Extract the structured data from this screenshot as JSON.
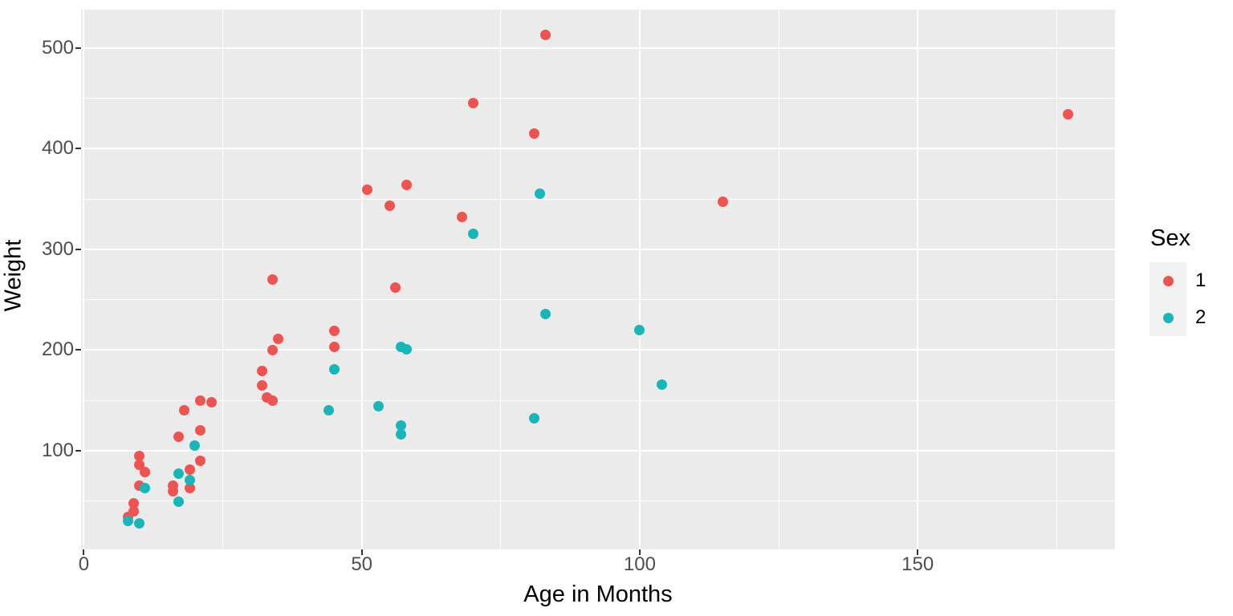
{
  "chart_data": {
    "type": "scatter",
    "title": "",
    "xlabel": "Age in Months",
    "ylabel": "Weight",
    "xlim": [
      -0.5,
      185.5
    ],
    "ylim": [
      2,
      538
    ],
    "x_major_ticks": [
      0,
      50,
      100,
      150
    ],
    "x_minor_ticks": [
      25,
      75,
      125,
      175
    ],
    "y_major_ticks": [
      100,
      200,
      300,
      400,
      500
    ],
    "y_minor_ticks": [
      50,
      150,
      250,
      350,
      450
    ],
    "grid": "on",
    "panel_bg": "#ebebeb",
    "grid_color": "#ffffff",
    "axis_text_color": "#4d4d4d",
    "legend": {
      "title": "Sex",
      "position": "right",
      "key_bg": "#f2f2f2",
      "entries": [
        {
          "label": "1",
          "color": "#f0524f"
        },
        {
          "label": "2",
          "color": "#16b6ba"
        }
      ]
    },
    "series": [
      {
        "name": "1",
        "color": "#f0524f",
        "points": [
          [
            8,
            34
          ],
          [
            9,
            40
          ],
          [
            9,
            48
          ],
          [
            10,
            65
          ],
          [
            10,
            86
          ],
          [
            10,
            95
          ],
          [
            11,
            79
          ],
          [
            16,
            60
          ],
          [
            16,
            65
          ],
          [
            17,
            114
          ],
          [
            18,
            140
          ],
          [
            19,
            63
          ],
          [
            19,
            81
          ],
          [
            21,
            90
          ],
          [
            21,
            120
          ],
          [
            21,
            150
          ],
          [
            23,
            148
          ],
          [
            32,
            165
          ],
          [
            32,
            179
          ],
          [
            33,
            153
          ],
          [
            34,
            150
          ],
          [
            34,
            200
          ],
          [
            34,
            270
          ],
          [
            35,
            211
          ],
          [
            45,
            203
          ],
          [
            45,
            219
          ],
          [
            51,
            359
          ],
          [
            55,
            343
          ],
          [
            56,
            262
          ],
          [
            58,
            364
          ],
          [
            68,
            332
          ],
          [
            70,
            445
          ],
          [
            81,
            415
          ],
          [
            83,
            513
          ],
          [
            115,
            347
          ],
          [
            177,
            434
          ]
        ]
      },
      {
        "name": "2",
        "color": "#16b6ba",
        "points": [
          [
            8,
            30
          ],
          [
            10,
            28
          ],
          [
            11,
            63
          ],
          [
            17,
            49
          ],
          [
            17,
            77
          ],
          [
            19,
            71
          ],
          [
            20,
            105
          ],
          [
            44,
            140
          ],
          [
            45,
            181
          ],
          [
            53,
            144
          ],
          [
            57,
            116
          ],
          [
            57,
            125
          ],
          [
            57,
            203
          ],
          [
            58,
            201
          ],
          [
            70,
            315
          ],
          [
            81,
            132
          ],
          [
            82,
            355
          ],
          [
            83,
            236
          ],
          [
            100,
            220
          ],
          [
            104,
            166
          ]
        ]
      }
    ]
  }
}
